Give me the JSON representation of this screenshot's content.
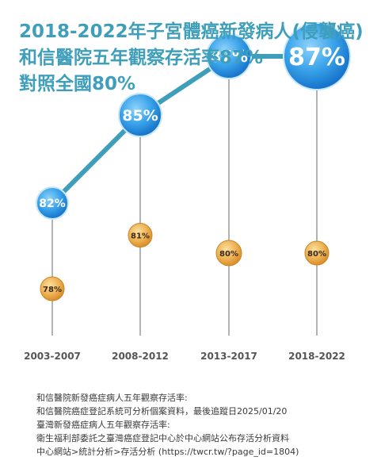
{
  "title_lines": [
    "2018-2022年子宮體癌新發病人(侵襲癌)",
    "和信醫院五年觀察存活率87%",
    "對照全國80%"
  ],
  "chart_data": {
    "type": "line",
    "categories": [
      "2003-2007",
      "2008-2012",
      "2013-2017",
      "2018-2022"
    ],
    "series": [
      {
        "values": [
          82,
          85,
          87,
          87
        ],
        "labels": [
          "82%",
          "85%",
          "87%",
          "87%"
        ]
      },
      {
        "values": [
          78,
          81,
          80,
          80
        ],
        "labels": [
          "78%",
          "81%",
          "80%",
          "80%"
        ]
      }
    ],
    "colors": {
      "title": "#3f9fbb",
      "bubble": "#1a86d8",
      "bubble_light": "#6fc3f4",
      "dot": "#e5a13c",
      "dot_light": "#f7cf7e",
      "line": "#3f9fbb",
      "axis_text": "#555555"
    }
  },
  "footnote": [
    "和信醫院新發癌症病人五年觀察存活率:",
    "和信醫院癌症登記系統可分析個案資料，最後追蹤日2025/01/20",
    "臺灣新發癌症病人五年觀察存活率:",
    "衛生福利部委託之臺灣癌症登記中心於中心網站公布存活分析資料",
    "中心網站>統計分析>存活分析 (https://twcr.tw/?page_id=1804)"
  ]
}
